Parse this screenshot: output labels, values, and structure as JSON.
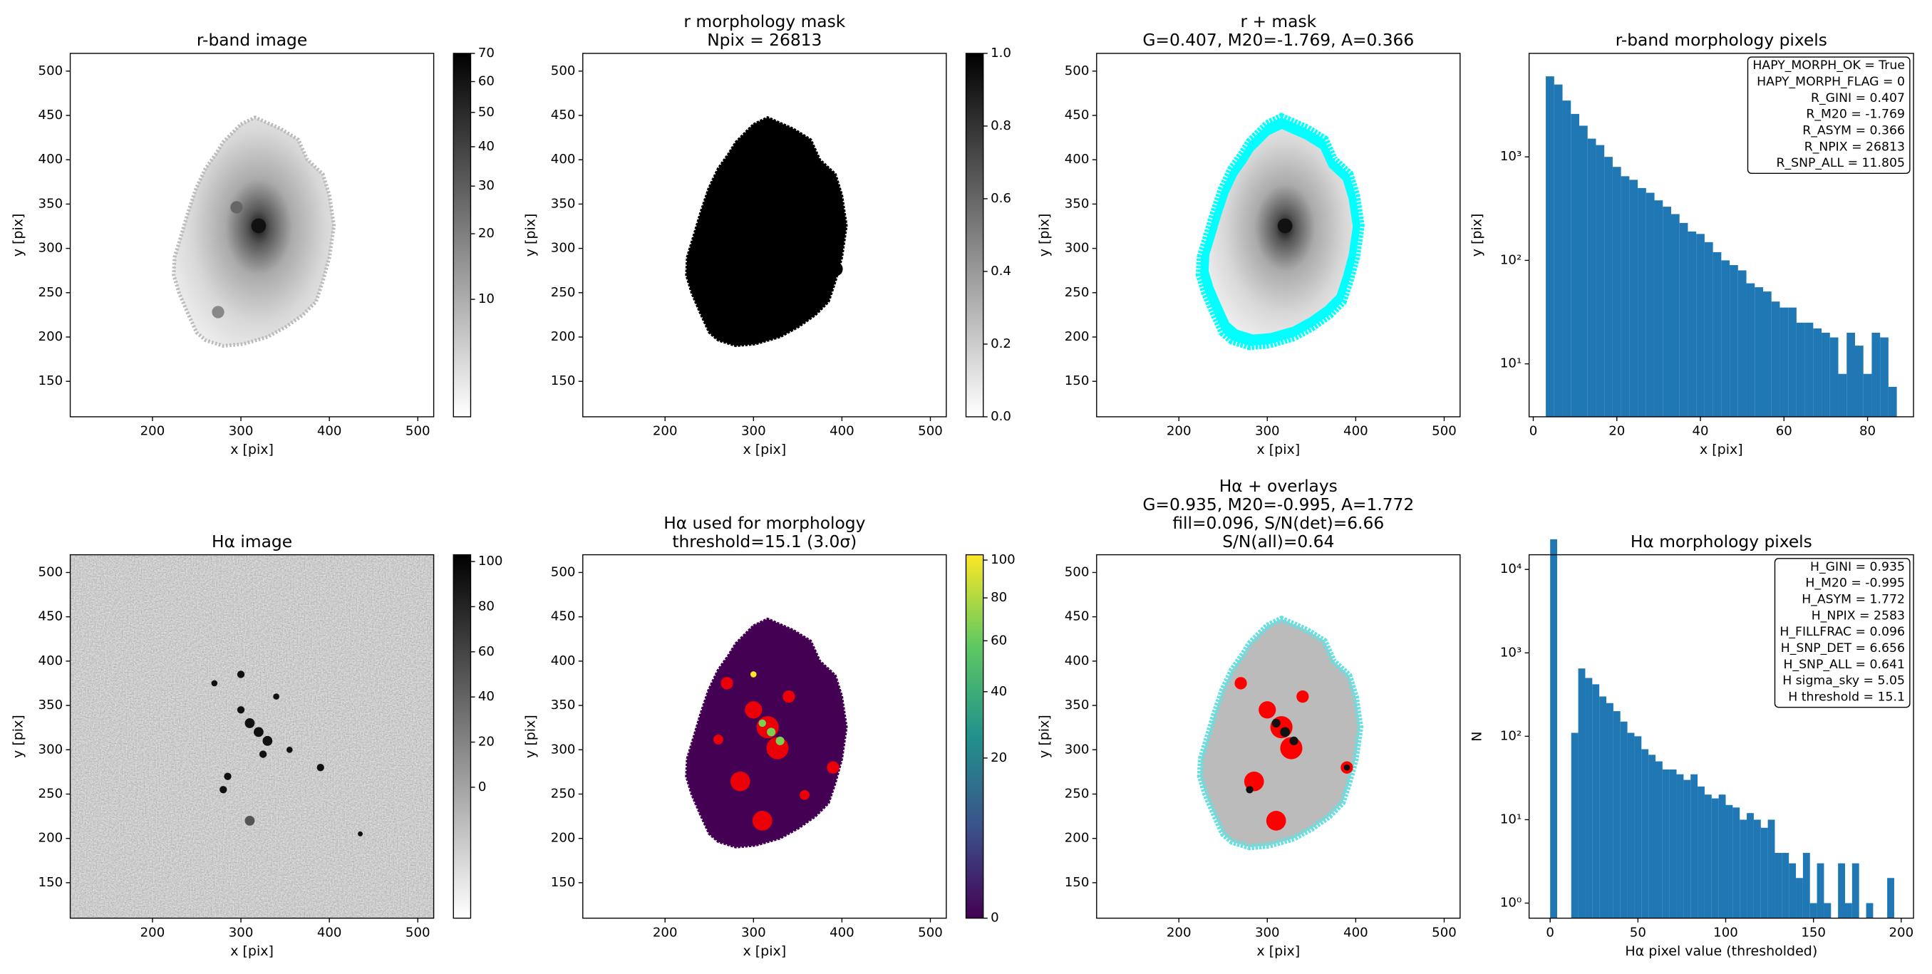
{
  "chart_data": [
    {
      "type": "image",
      "title": [
        "r-band image"
      ],
      "xlabel": "x [pix]",
      "ylabel": "y [pix]",
      "xlim": [
        107,
        518
      ],
      "ylim": [
        110,
        520
      ],
      "xticks": [
        200,
        300,
        400,
        500
      ],
      "yticks": [
        150,
        200,
        250,
        300,
        350,
        400,
        450,
        500
      ],
      "colorbar": {
        "colors": [
          "#ffffff",
          "#000000"
        ],
        "lim": [
          3,
          70
        ],
        "stretch": "sqrt",
        "ticks": [
          10,
          20,
          30,
          40,
          50,
          60,
          70
        ]
      }
    },
    {
      "type": "image",
      "title": [
        "r morphology mask",
        "Npix = 26813"
      ],
      "xlabel": "x [pix]",
      "ylabel": "y [pix]",
      "xlim": [
        107,
        518
      ],
      "ylim": [
        110,
        520
      ],
      "xticks": [
        200,
        300,
        400,
        500
      ],
      "yticks": [
        150,
        200,
        250,
        300,
        350,
        400,
        450,
        500
      ],
      "colorbar": {
        "colors": [
          "#ffffff",
          "#000000"
        ],
        "lim": [
          0,
          1
        ],
        "stretch": "linear",
        "ticks": [
          {
            "value": 0,
            "label": "0.0"
          },
          0.2,
          0.4,
          0.6,
          0.8,
          {
            "value": 1,
            "label": "1.0"
          }
        ]
      }
    },
    {
      "type": "image",
      "title": [
        "r + mask",
        "G=0.407, M20=-1.769, A=0.366"
      ],
      "xlabel": "x [pix]",
      "ylabel": "y [pix]",
      "xlim": [
        107,
        518
      ],
      "ylim": [
        110,
        520
      ],
      "xticks": [
        200,
        300,
        400,
        500
      ],
      "yticks": [
        150,
        200,
        250,
        300,
        350,
        400,
        450,
        500
      ]
    },
    {
      "type": "histogram",
      "title": [
        "r-band morphology pixels"
      ],
      "xlabel": "x [pix]",
      "ylabel": "y [pix]",
      "color": "#1f77b4",
      "bins": [
        3,
        5,
        7,
        9,
        11,
        13,
        15,
        17,
        19,
        21,
        23,
        25,
        27,
        29,
        31,
        33,
        35,
        37,
        39,
        41,
        43,
        45,
        47,
        49,
        51,
        53,
        55,
        57,
        59,
        61,
        63,
        65,
        67,
        69,
        71,
        73,
        75,
        77,
        79,
        81,
        83,
        85,
        87
      ],
      "values": [
        6000,
        5000,
        3500,
        2600,
        2000,
        1500,
        1300,
        1000,
        800,
        650,
        600,
        500,
        450,
        380,
        330,
        280,
        230,
        190,
        180,
        150,
        120,
        100,
        90,
        80,
        60,
        55,
        50,
        40,
        35,
        35,
        25,
        25,
        22,
        20,
        18,
        8,
        20,
        15,
        8,
        20,
        18,
        6
      ],
      "log_y": true,
      "xlim": [
        -1,
        91
      ],
      "ylim": [
        3.08,
        10000
      ],
      "xticks": [
        0,
        20,
        40,
        60,
        80
      ],
      "yticks": [
        {
          "value": 10,
          "label": "10¹"
        },
        {
          "value": 100,
          "label": "10²"
        },
        {
          "value": 1000,
          "label": "10³"
        }
      ],
      "annotation_corner": "upper right",
      "annotation": [
        "HAPY_MORPH_OK = True",
        "HAPY_MORPH_FLAG = 0",
        "R_GINI = 0.407",
        "R_M20 = -1.769",
        "R_ASYM = 0.366",
        "R_NPIX = 26813",
        "R_SNP_ALL = 11.805"
      ]
    },
    {
      "type": "image",
      "title": [
        "Hα image"
      ],
      "xlabel": "x [pix]",
      "ylabel": "y [pix]",
      "xlim": [
        107,
        518
      ],
      "ylim": [
        110,
        520
      ],
      "xticks": [
        200,
        300,
        400,
        500
      ],
      "yticks": [
        150,
        200,
        250,
        300,
        350,
        400,
        450,
        500
      ],
      "colorbar": {
        "colors": [
          "#ffffff",
          "#000000"
        ],
        "lim": [
          -58,
          103
        ],
        "stretch": "linear",
        "ticks": [
          0,
          20,
          40,
          60,
          80,
          100
        ]
      }
    },
    {
      "type": "image",
      "title": [
        "Hα used for morphology",
        "threshold=15.1 (3.0σ)"
      ],
      "xlabel": "x [pix]",
      "ylabel": "y [pix]",
      "xlim": [
        107,
        518
      ],
      "ylim": [
        110,
        520
      ],
      "xticks": [
        200,
        300,
        400,
        500
      ],
      "yticks": [
        150,
        200,
        250,
        300,
        350,
        400,
        450,
        500
      ],
      "colorbar": {
        "colors": [
          "#440154",
          "#3b528b",
          "#21918c",
          "#5ec962",
          "#fde725"
        ],
        "lim": [
          0,
          103
        ],
        "stretch": "sqrt",
        "ticks": [
          0,
          20,
          40,
          60,
          80,
          100
        ]
      }
    },
    {
      "type": "image",
      "title": [
        "Hα + overlays",
        "G=0.935, M20=-0.995, A=1.772",
        "fill=0.096, S/N(det)=6.66",
        "S/N(all)=0.64"
      ],
      "xlabel": "x [pix]",
      "ylabel": "y [pix]",
      "xlim": [
        107,
        518
      ],
      "ylim": [
        110,
        520
      ],
      "xticks": [
        200,
        300,
        400,
        500
      ],
      "yticks": [
        150,
        200,
        250,
        300,
        350,
        400,
        450,
        500
      ]
    },
    {
      "type": "histogram",
      "title": [
        "Hα morphology pixels"
      ],
      "xlabel": "Hα pixel value (thresholded)",
      "ylabel": "N",
      "color": "#1f77b4",
      "bins": [
        0,
        4,
        8,
        12,
        16,
        20,
        24,
        28,
        32,
        36,
        40,
        44,
        48,
        52,
        56,
        60,
        64,
        68,
        72,
        76,
        80,
        84,
        88,
        92,
        96,
        100,
        104,
        108,
        112,
        116,
        120,
        124,
        128,
        132,
        136,
        140,
        144,
        148,
        152,
        156,
        160,
        164,
        168,
        172,
        176,
        180,
        184,
        188,
        192,
        196
      ],
      "values": [
        23000,
        0,
        0,
        110,
        650,
        500,
        420,
        300,
        250,
        200,
        150,
        110,
        100,
        70,
        60,
        50,
        40,
        40,
        35,
        30,
        35,
        25,
        20,
        18,
        20,
        15,
        14,
        10,
        12,
        10,
        8,
        10,
        4,
        4,
        3,
        2,
        4,
        1,
        3,
        1,
        0,
        3,
        1,
        3,
        0,
        1,
        0,
        0,
        2,
        1
      ],
      "log_y": true,
      "xlim": [
        -12,
        207
      ],
      "ylim": [
        0.66,
        15000
      ],
      "xticks": [
        0,
        50,
        100,
        150,
        200
      ],
      "yticks": [
        {
          "value": 1,
          "label": "10⁰"
        },
        {
          "value": 10,
          "label": "10¹"
        },
        {
          "value": 100,
          "label": "10²"
        },
        {
          "value": 1000,
          "label": "10³"
        },
        {
          "value": 10000,
          "label": "10⁴"
        }
      ],
      "annotation_corner": "upper right",
      "annotation": [
        "H_GINI = 0.935",
        "H_M20 = -0.995",
        "H_ASYM = 1.772",
        "H_NPIX = 2583",
        "H_FILLFRAC = 0.096",
        "H_SNP_DET = 6.656",
        "H_SNP_ALL = 0.641",
        "H sigma_sky = 5.05",
        "H threshold = 15.1"
      ]
    }
  ]
}
